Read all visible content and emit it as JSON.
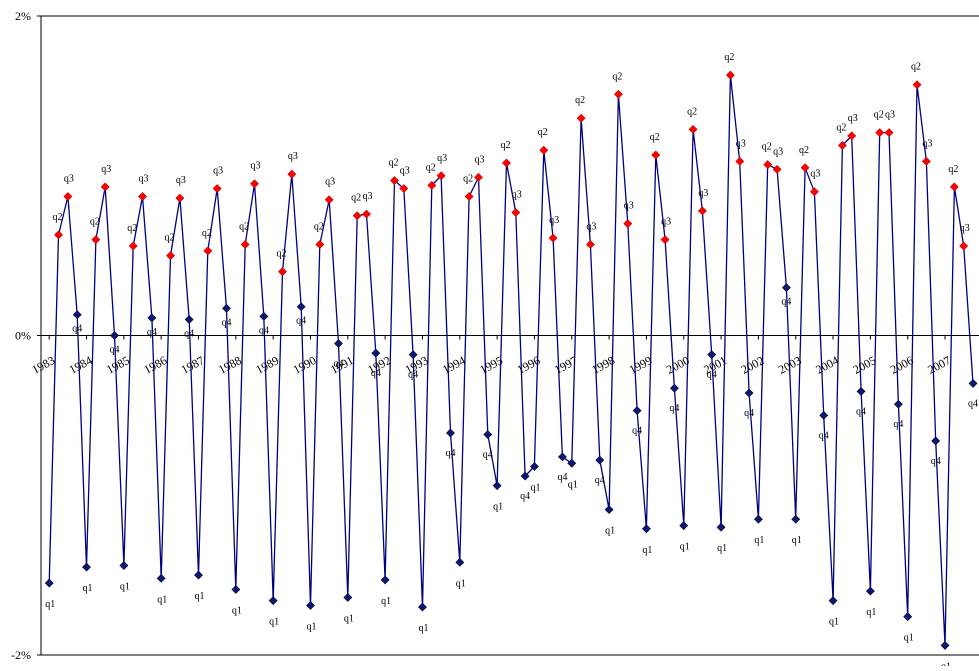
{
  "chart_data": {
    "type": "line",
    "title": "",
    "xlabel": "",
    "ylabel": "",
    "ylim": [
      -2,
      2
    ],
    "y_ticks": [
      {
        "value": 2,
        "label": "2%"
      },
      {
        "value": 0,
        "label": "0%"
      },
      {
        "value": -2,
        "label": "-2%"
      }
    ],
    "years": [
      "1983",
      "1984",
      "1985",
      "1986",
      "1987",
      "1988",
      "1989",
      "1990",
      "1991",
      "1992",
      "1993",
      "1994",
      "1995",
      "1996",
      "1997",
      "1998",
      "1999",
      "2000",
      "2001",
      "2002",
      "2003",
      "2004",
      "2005",
      "2006",
      "2007"
    ],
    "x_visible_range": [
      -0.22,
      24.91
    ],
    "grid": false,
    "legend": "none",
    "colors": {
      "line": "#000080",
      "q1_q4_marker": "#0a1a6e",
      "q2_q3_marker": "#ff0000",
      "axis": "#000000"
    },
    "series": [
      {
        "values": [
          -1.55,
          0.63,
          0.87,
          0.13,
          -1.45,
          0.6,
          0.93,
          0.0,
          -1.44,
          0.56,
          0.87,
          0.11,
          -1.52,
          0.5,
          0.86,
          0.1,
          -1.5,
          0.53,
          0.92,
          0.17,
          -1.59,
          0.57,
          0.95,
          0.12,
          -1.66,
          0.4,
          1.01,
          0.18,
          -1.69,
          0.57,
          0.85,
          -0.05,
          -1.64,
          0.75,
          0.76,
          -0.11,
          -1.53,
          0.97,
          0.92,
          -0.12,
          -1.7,
          0.94,
          1.0,
          -0.61,
          -1.42,
          0.87,
          0.99,
          -0.62,
          -0.94,
          1.08,
          0.77,
          -0.88,
          -0.82,
          1.16,
          0.61,
          -0.76,
          -0.8,
          1.36,
          0.57,
          -0.78,
          -1.09,
          1.51,
          0.7,
          -0.47,
          -1.21,
          1.13,
          0.6,
          -0.33,
          -1.19,
          1.29,
          0.78,
          -0.12,
          -1.2,
          1.63,
          1.09,
          -0.36,
          -1.15,
          1.07,
          1.04,
          0.3,
          -1.15,
          1.05,
          0.9,
          -0.5,
          -1.66,
          1.19,
          1.25,
          -0.35,
          -1.6,
          1.27,
          1.27,
          -0.43,
          -1.76,
          1.57,
          1.09,
          -0.66,
          -1.94,
          0.93,
          0.56,
          -0.3
        ]
      }
    ],
    "point_labels": [
      "q1",
      "q2",
      "q3",
      "q4"
    ]
  }
}
